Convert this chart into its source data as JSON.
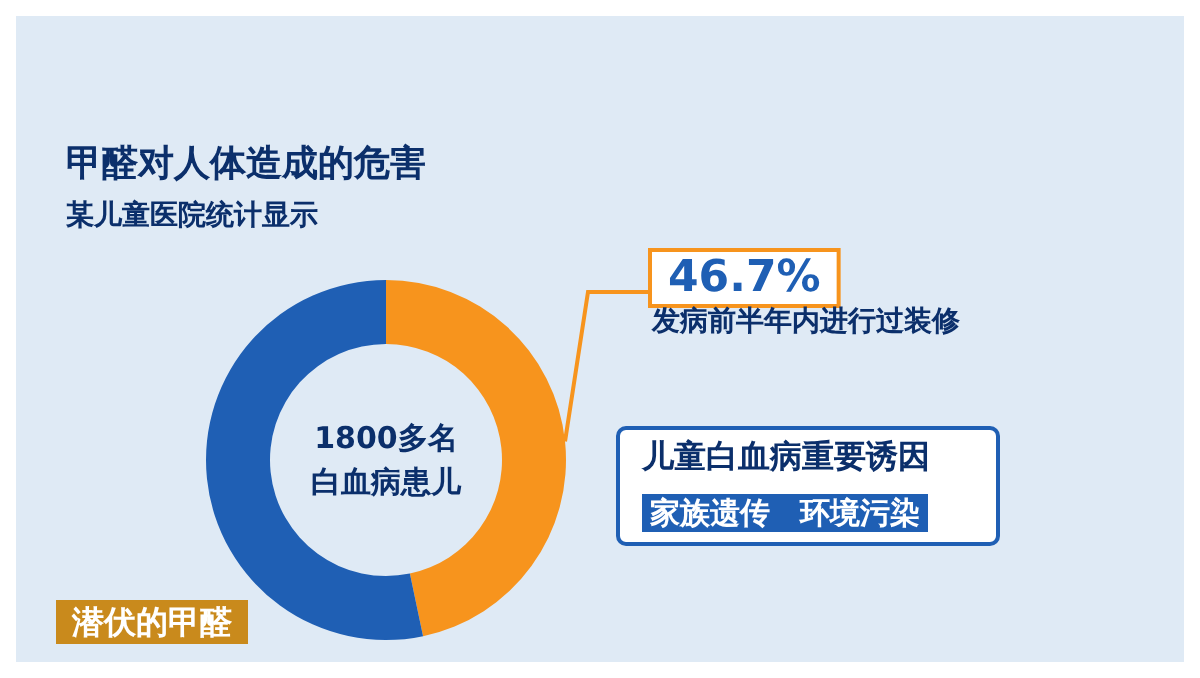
{
  "chart_data": {
    "type": "donut",
    "title": "甲醛对人体造成的危害",
    "subtitle": "某儿童医院统计显示",
    "categories": [
      "发病前半年内进行过装修",
      null
    ],
    "values": [
      46.7,
      53.3
    ],
    "colors": [
      "#f7941d",
      "#1f5fb4"
    ],
    "value_labels": [
      "46.7%",
      null
    ],
    "legend": false,
    "annotations": [
      "1800多名白血病患儿",
      "儿童白血病重要诱因",
      "家族遗传　环境污染",
      "潜伏的甲醛"
    ]
  }
}
